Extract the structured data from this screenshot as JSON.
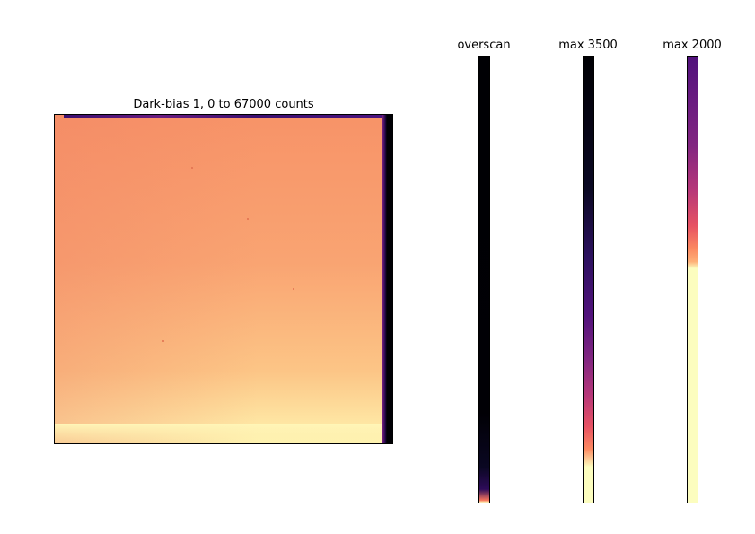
{
  "main_panel": {
    "title": "Dark-bias 1, 0 to 67000 counts"
  },
  "strips": [
    {
      "id": "overscan",
      "title": "overscan"
    },
    {
      "id": "max3500",
      "title": "max 3500"
    },
    {
      "id": "max2000",
      "title": "max 2000"
    }
  ],
  "colormap": "magma",
  "colors": {
    "dark": "#000004",
    "purple": "#51127c",
    "magenta": "#b73779",
    "orange": "#fc8961",
    "pale_yellow": "#fcfdbf"
  }
}
